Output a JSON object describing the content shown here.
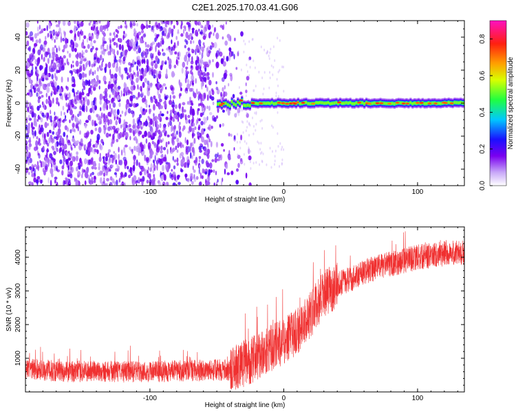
{
  "page_title": "C2E1.2025.170.03.41.G06",
  "colors": {
    "snr_line": "#f03030",
    "background": "#ffffff",
    "axis": "#000000"
  },
  "chart_data": [
    {
      "type": "heatmap",
      "title": "C2E1.2025.170.03.41.G06",
      "xlabel": "Height of straight line (km)",
      "ylabel": "Frequency (Hz)",
      "xlim": [
        -193,
        135
      ],
      "ylim": [
        -50,
        50
      ],
      "x_ticks": [
        -100,
        0,
        100
      ],
      "y_ticks": [
        -40,
        -20,
        0,
        20,
        40
      ],
      "colorbar": {
        "label": "Normalized spectral amplitude",
        "range": [
          0.0,
          0.9
        ],
        "ticks": [
          0.0,
          0.2,
          0.4,
          0.6,
          0.8
        ],
        "colormap": "rainbow (white-violet-blue-cyan-green-yellow-orange-red-magenta)"
      },
      "features": [
        {
          "description": "scattered low-amplitude noise",
          "x_range": [
            -193,
            -35
          ],
          "freq_range": [
            -50,
            50
          ],
          "amplitude": 0.1
        },
        {
          "description": "carrier signal near 0 Hz",
          "x_range": [
            -50,
            135
          ],
          "freq": 0,
          "amplitude": 0.7
        }
      ]
    },
    {
      "type": "line",
      "xlabel": "Height of straight line (km)",
      "ylabel": "SNR (10 * v/v)",
      "xlim": [
        -193,
        135
      ],
      "ylim": [
        0,
        4900
      ],
      "x_ticks": [
        -100,
        0,
        100
      ],
      "y_ticks": [
        1000,
        2000,
        3000,
        4000
      ],
      "series": [
        {
          "x": [
            -193,
            -180,
            -160,
            -140,
            -120,
            -100,
            -80,
            -60,
            -50,
            -40,
            -30,
            -20,
            -10,
            0,
            10,
            20,
            30,
            40,
            50,
            60,
            70,
            80,
            90,
            100,
            110,
            120,
            135
          ],
          "y": [
            700,
            650,
            600,
            620,
            600,
            600,
            620,
            640,
            650,
            650,
            800,
            1050,
            1300,
            1500,
            1800,
            2300,
            2900,
            3200,
            3350,
            3550,
            3700,
            3800,
            3900,
            4000,
            4050,
            4100,
            4150
          ]
        }
      ]
    }
  ]
}
